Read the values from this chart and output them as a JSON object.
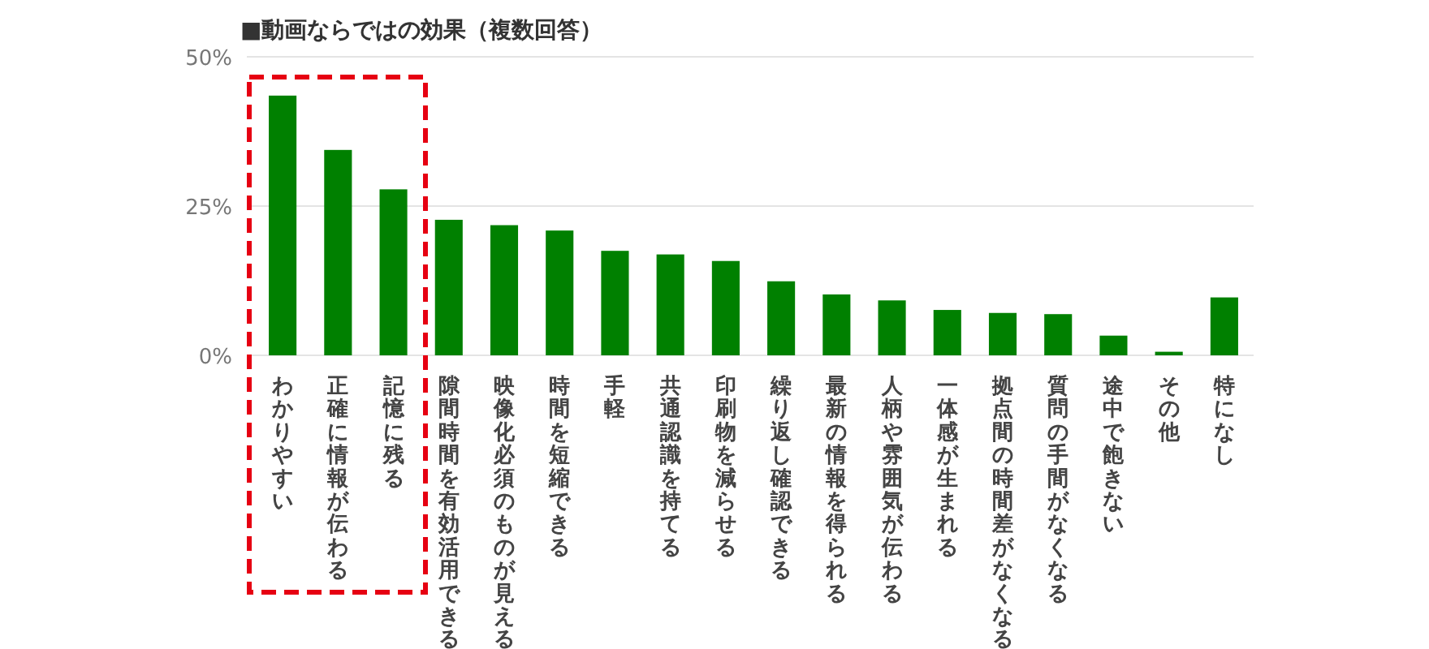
{
  "chart_data": {
    "type": "bar",
    "title": "■動画ならではの効果（複数回答）",
    "categories": [
      "わかりやすい",
      "正確に情報が伝わる",
      "記憶に残る",
      "隙間時間を有効活用できる",
      "映像化必須のものが見える",
      "時間を短縮できる",
      "手軽",
      "共通認識を持てる",
      "印刷物を減らせる",
      "繰り返し確認できる",
      "最新の情報を得られる",
      "人柄や雰囲気が伝わる",
      "一体感が生まれる",
      "拠点間の時間差がなくなる",
      "質問の手間がなくなる",
      "途中で飽きない",
      "その他",
      "特になし"
    ],
    "values": [
      43.5,
      34.4,
      27.8,
      22.7,
      21.8,
      20.9,
      17.5,
      16.9,
      15.8,
      12.4,
      10.2,
      9.2,
      7.6,
      7.1,
      6.9,
      3.3,
      0.6,
      9.7
    ],
    "color": "#008000",
    "ylim": [
      0,
      50
    ],
    "yticks": [
      {
        "value": 0,
        "label": "0%"
      },
      {
        "value": 25,
        "label": "25%"
      },
      {
        "value": 50,
        "label": "50%"
      }
    ],
    "grid": "y"
  }
}
